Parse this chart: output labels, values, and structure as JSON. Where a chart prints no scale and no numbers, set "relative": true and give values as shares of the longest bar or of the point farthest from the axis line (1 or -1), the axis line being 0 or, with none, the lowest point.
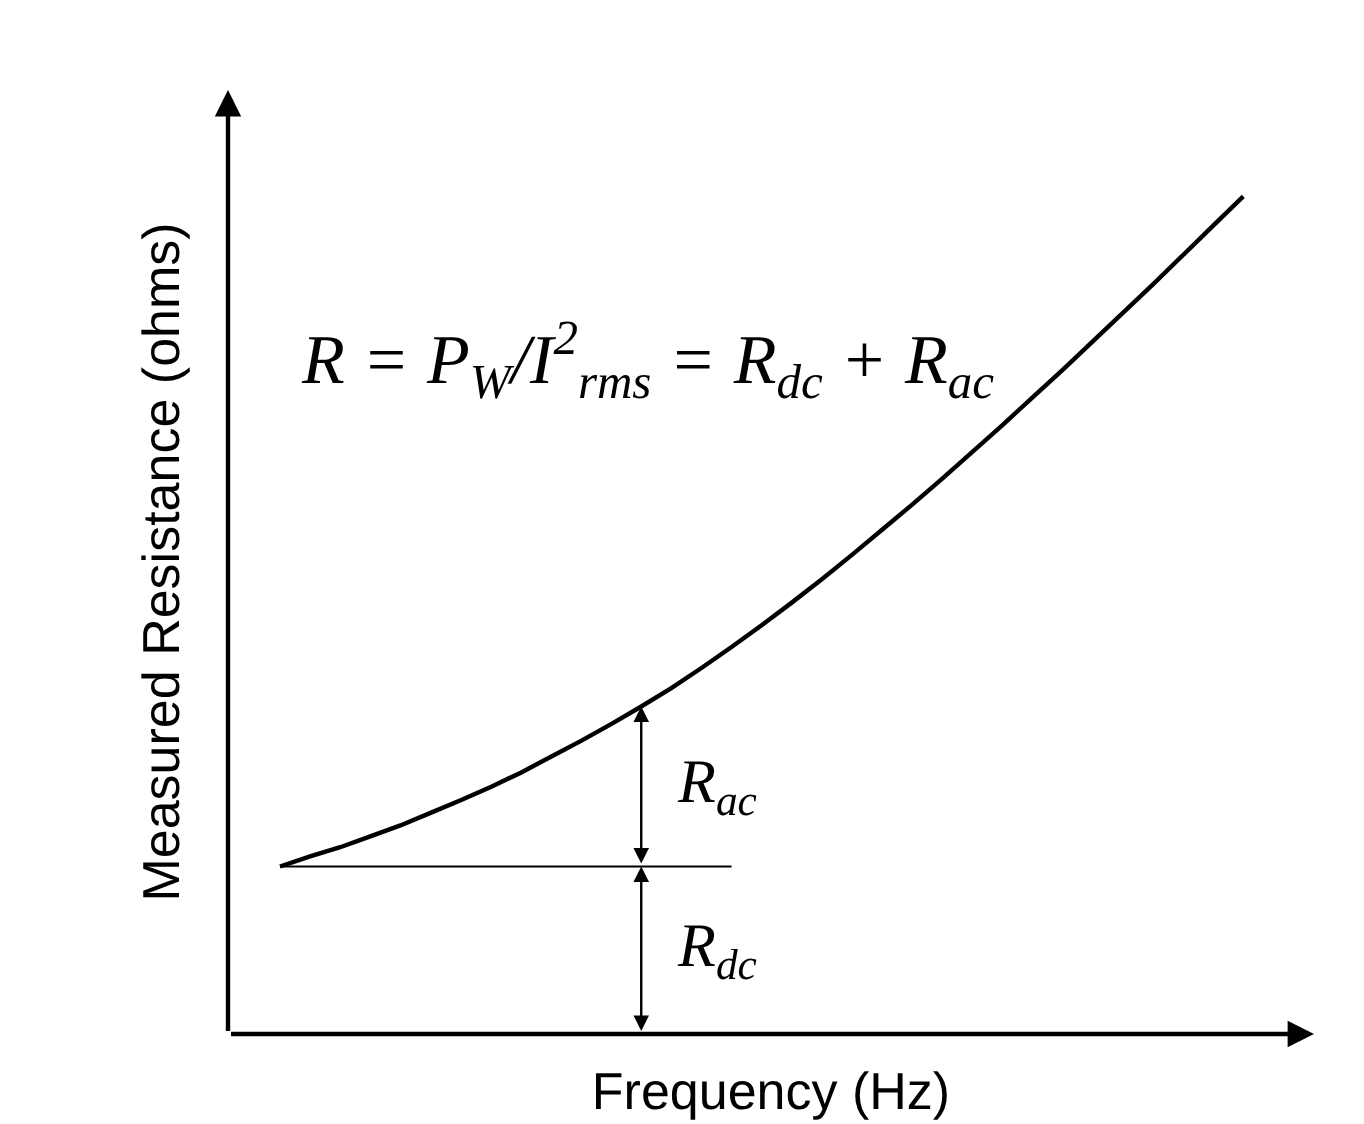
{
  "chart_data": {
    "type": "line",
    "relative": true,
    "xlabel": "Frequency (Hz)",
    "ylabel": "Measured Resistance (ohms)",
    "categories": [
      null,
      null,
      null,
      null,
      null,
      null,
      null,
      null,
      null,
      null,
      null,
      null,
      null,
      null,
      null,
      null,
      null,
      null,
      null,
      null,
      null,
      null,
      null,
      null,
      null,
      null,
      null,
      null,
      null,
      null,
      null,
      null,
      null
    ],
    "series": [
      {
        "color": "#000000",
        "values": [
          0.2,
          0.212,
          0.223,
          0.236,
          0.249,
          0.264,
          0.279,
          0.295,
          0.312,
          0.331,
          0.35,
          0.37,
          0.391,
          0.413,
          0.437,
          0.462,
          0.488,
          0.515,
          0.543,
          0.572,
          0.602,
          0.632,
          0.663,
          0.695,
          0.727,
          0.76,
          0.793,
          0.827,
          0.861,
          0.895,
          0.93,
          0.965,
          1.0
        ]
      },
      {
        "color": "#000000",
        "values": [
          0.2,
          0.2,
          0.2,
          0.2,
          0.2,
          0.2,
          0.2,
          0.2,
          0.2,
          0.2,
          0.2,
          0.2,
          0.2,
          0.2,
          0.2,
          0.2,
          null,
          null,
          null,
          null,
          null,
          null,
          null,
          null,
          null,
          null,
          null,
          null,
          null,
          null,
          null,
          null,
          null
        ]
      }
    ],
    "annotations": [
      "R = P$_{W}$/I$^{2}$$_{rms}$ = R$_{dc}$ + R$_{ac}$",
      "R$_{ac}$",
      "R$_{dc}$"
    ]
  }
}
